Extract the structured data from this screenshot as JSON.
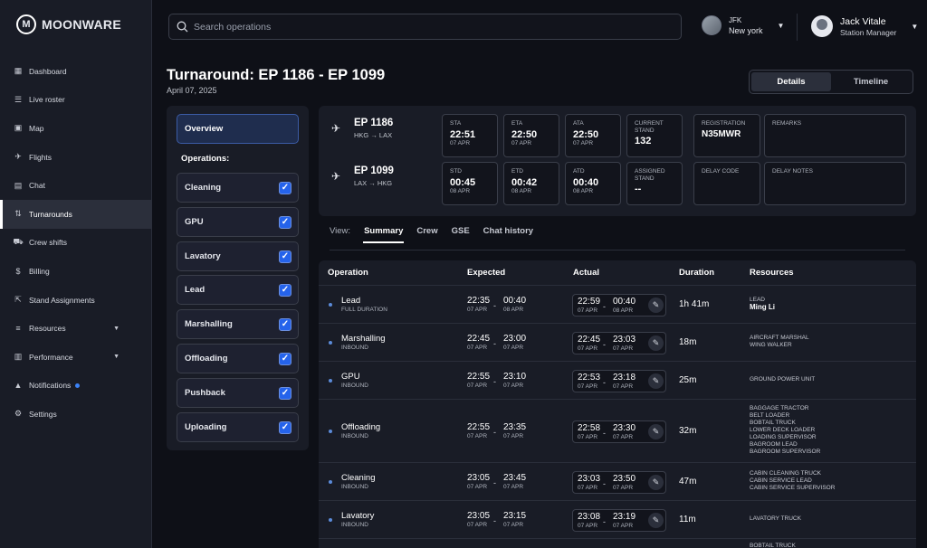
{
  "brand": {
    "name": "MOONWARE",
    "mark": "M"
  },
  "nav": [
    {
      "label": "Dashboard",
      "icon": "dashboard-icon",
      "glyph": "▦"
    },
    {
      "label": "Live roster",
      "icon": "roster-icon",
      "glyph": "☰"
    },
    {
      "label": "Map",
      "icon": "map-icon",
      "glyph": "▣"
    },
    {
      "label": "Flights",
      "icon": "plane-icon",
      "glyph": "✈"
    },
    {
      "label": "Chat",
      "icon": "chat-icon",
      "glyph": "▤"
    },
    {
      "label": "Turnarounds",
      "icon": "turnaround-icon",
      "glyph": "⇅",
      "active": true
    },
    {
      "label": "Crew shifts",
      "icon": "crew-icon",
      "glyph": "⛟"
    },
    {
      "label": "Billing",
      "icon": "dollar-icon",
      "glyph": "$"
    },
    {
      "label": "Stand Assignments",
      "icon": "stand-icon",
      "glyph": "⇱"
    },
    {
      "label": "Resources",
      "icon": "resources-icon",
      "glyph": "≡",
      "caret": true
    },
    {
      "label": "Performance",
      "icon": "performance-icon",
      "glyph": "▥",
      "caret": true
    },
    {
      "label": "Notifications",
      "icon": "warning-icon",
      "glyph": "▲",
      "dot": true
    },
    {
      "label": "Settings",
      "icon": "settings-icon",
      "glyph": "⚙"
    }
  ],
  "search": {
    "placeholder": "Search operations"
  },
  "airport": {
    "code": "JFK",
    "city": "New york"
  },
  "user": {
    "name": "Jack Vitale",
    "role": "Station Manager"
  },
  "page": {
    "title": "Turnaround: EP 1186 - EP 1099",
    "date": "April 07, 2025"
  },
  "view_toggle": {
    "details": "Details",
    "timeline": "Timeline"
  },
  "overview": "Overview",
  "operations_label": "Operations:",
  "operations": [
    "Cleaning",
    "GPU",
    "Lavatory",
    "Lead",
    "Marshalling",
    "Offloading",
    "Pushback",
    "Uploading"
  ],
  "arrival": {
    "flight": "EP 1186",
    "route": "HKG → LAX",
    "sta": {
      "label": "STA",
      "time": "22:51",
      "date": "07 APR"
    },
    "eta": {
      "label": "ETA",
      "time": "22:50",
      "date": "07 APR"
    },
    "ata": {
      "label": "ATA",
      "time": "22:50",
      "date": "07 APR"
    },
    "stand": {
      "label1": "CURRENT",
      "label2": "STAND",
      "value": "132"
    },
    "registration": {
      "label": "REGISTRATION",
      "value": "N35MWR"
    },
    "remarks": {
      "label": "REMARKS"
    }
  },
  "departure": {
    "flight": "EP 1099",
    "route": "LAX → HKG",
    "std": {
      "label": "STD",
      "time": "00:45",
      "date": "08 APR"
    },
    "etd": {
      "label": "ETD",
      "time": "00:42",
      "date": "08 APR"
    },
    "atd": {
      "label": "ATD",
      "time": "00:40",
      "date": "08 APR"
    },
    "stand": {
      "label1": "ASSIGNED",
      "label2": "STAND",
      "value": "--"
    },
    "delay_code": {
      "label": "DELAY CODE"
    },
    "delay_notes": {
      "label": "DELAY NOTES"
    }
  },
  "tabs": {
    "view": "View:",
    "summary": "Summary",
    "crew": "Crew",
    "gse": "GSE",
    "chat": "Chat history"
  },
  "table": {
    "headers": {
      "operation": "Operation",
      "expected": "Expected",
      "actual": "Actual",
      "duration": "Duration",
      "resources": "Resources"
    },
    "rows": [
      {
        "name": "Lead",
        "sub": "FULL DURATION",
        "es": "22:35",
        "esd": "07 APR",
        "ee": "00:40",
        "eed": "08 APR",
        "as": "22:59",
        "asd": "07 APR",
        "ae": "00:40",
        "aed": "08 APR",
        "dur": "1h 41m",
        "res": [
          "LEAD"
        ],
        "res_strong": "Ming Li"
      },
      {
        "name": "Marshalling",
        "sub": "INBOUND",
        "es": "22:45",
        "esd": "07 APR",
        "ee": "23:00",
        "eed": "07 APR",
        "as": "22:45",
        "asd": "07 APR",
        "ae": "23:03",
        "aed": "07 APR",
        "dur": "18m",
        "res": [
          "AIRCRAFT MARSHAL",
          "WING WALKER"
        ]
      },
      {
        "name": "GPU",
        "sub": "INBOUND",
        "es": "22:55",
        "esd": "07 APR",
        "ee": "23:10",
        "eed": "07 APR",
        "as": "22:53",
        "asd": "07 APR",
        "ae": "23:18",
        "aed": "07 APR",
        "dur": "25m",
        "res": [
          "GROUND POWER UNIT"
        ]
      },
      {
        "name": "Offloading",
        "sub": "INBOUND",
        "es": "22:55",
        "esd": "07 APR",
        "ee": "23:35",
        "eed": "07 APR",
        "as": "22:58",
        "asd": "07 APR",
        "ae": "23:30",
        "aed": "07 APR",
        "dur": "32m",
        "res": [
          "BAGGAGE TRACTOR",
          "BELT LOADER",
          "BOBTAIL TRUCK",
          "LOWER DECK LOADER",
          "LOADING SUPERVISOR",
          "BAGROOM LEAD",
          "BAGROOM SUPERVISOR"
        ]
      },
      {
        "name": "Cleaning",
        "sub": "INBOUND",
        "es": "23:05",
        "esd": "07 APR",
        "ee": "23:45",
        "eed": "07 APR",
        "as": "23:03",
        "asd": "07 APR",
        "ae": "23:50",
        "aed": "07 APR",
        "dur": "47m",
        "res": [
          "CABIN CLEANING TRUCK",
          "CABIN SERVICE LEAD",
          "CABIN SERVICE SUPERVISOR"
        ]
      },
      {
        "name": "Lavatory",
        "sub": "INBOUND",
        "es": "23:05",
        "esd": "07 APR",
        "ee": "23:15",
        "eed": "07 APR",
        "as": "23:08",
        "asd": "07 APR",
        "ae": "23:19",
        "aed": "07 APR",
        "dur": "11m",
        "res": [
          "LAVATORY TRUCK"
        ]
      },
      {
        "name": "",
        "sub": "",
        "es": "",
        "esd": "",
        "ee": "",
        "eed": "",
        "as": "",
        "asd": "",
        "ae": "",
        "aed": "",
        "dur": "",
        "res": [
          "BOBTAIL TRUCK"
        ]
      }
    ]
  }
}
